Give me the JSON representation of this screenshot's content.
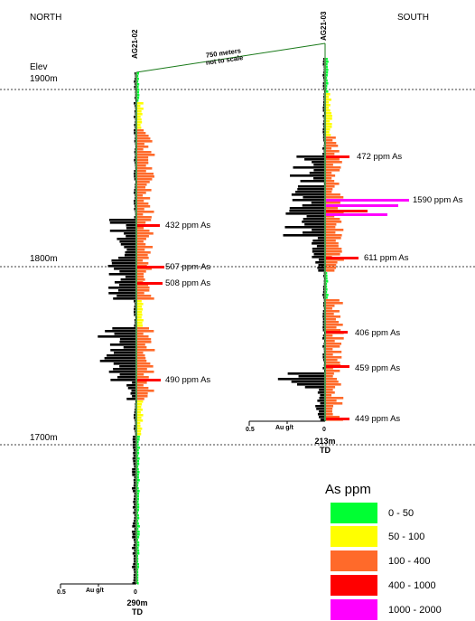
{
  "header": {
    "north": "NORTH",
    "south": "SOUTH"
  },
  "elevations": {
    "title": "Elev",
    "levels": [
      "1900m",
      "1800m",
      "1700m"
    ]
  },
  "holes": [
    {
      "id": "AG21-02",
      "depth": "290m",
      "td": "TD"
    },
    {
      "id": "AG21-03",
      "depth": "213m",
      "td": "TD"
    }
  ],
  "distance_note": {
    "line1": "750 meters",
    "line2": "not to scale"
  },
  "annotations_hole1": [
    "432 ppm As",
    "507 ppm As",
    "508 ppm As",
    "490 ppm As"
  ],
  "annotations_hole2": [
    "472 ppm As",
    "1590 ppm As",
    "611 ppm As",
    "406 ppm As",
    "459 ppm As",
    "449 ppm As"
  ],
  "scale_bar": {
    "left_value": "0.5",
    "unit": "Au g/t",
    "right_value": "0"
  },
  "legend": {
    "title": "As ppm",
    "items": [
      {
        "label": "0 - 50",
        "color": "#00ff33"
      },
      {
        "label": "50 - 100",
        "color": "#ffff00"
      },
      {
        "label": "100 - 400",
        "color": "#ff6a2a"
      },
      {
        "label": "400 - 1000",
        "color": "#ff0000"
      },
      {
        "label": "1000 - 2000",
        "color": "#ff00ff"
      }
    ]
  },
  "colors": {
    "au": "#000000",
    "trace": "#1a7a1a"
  }
}
